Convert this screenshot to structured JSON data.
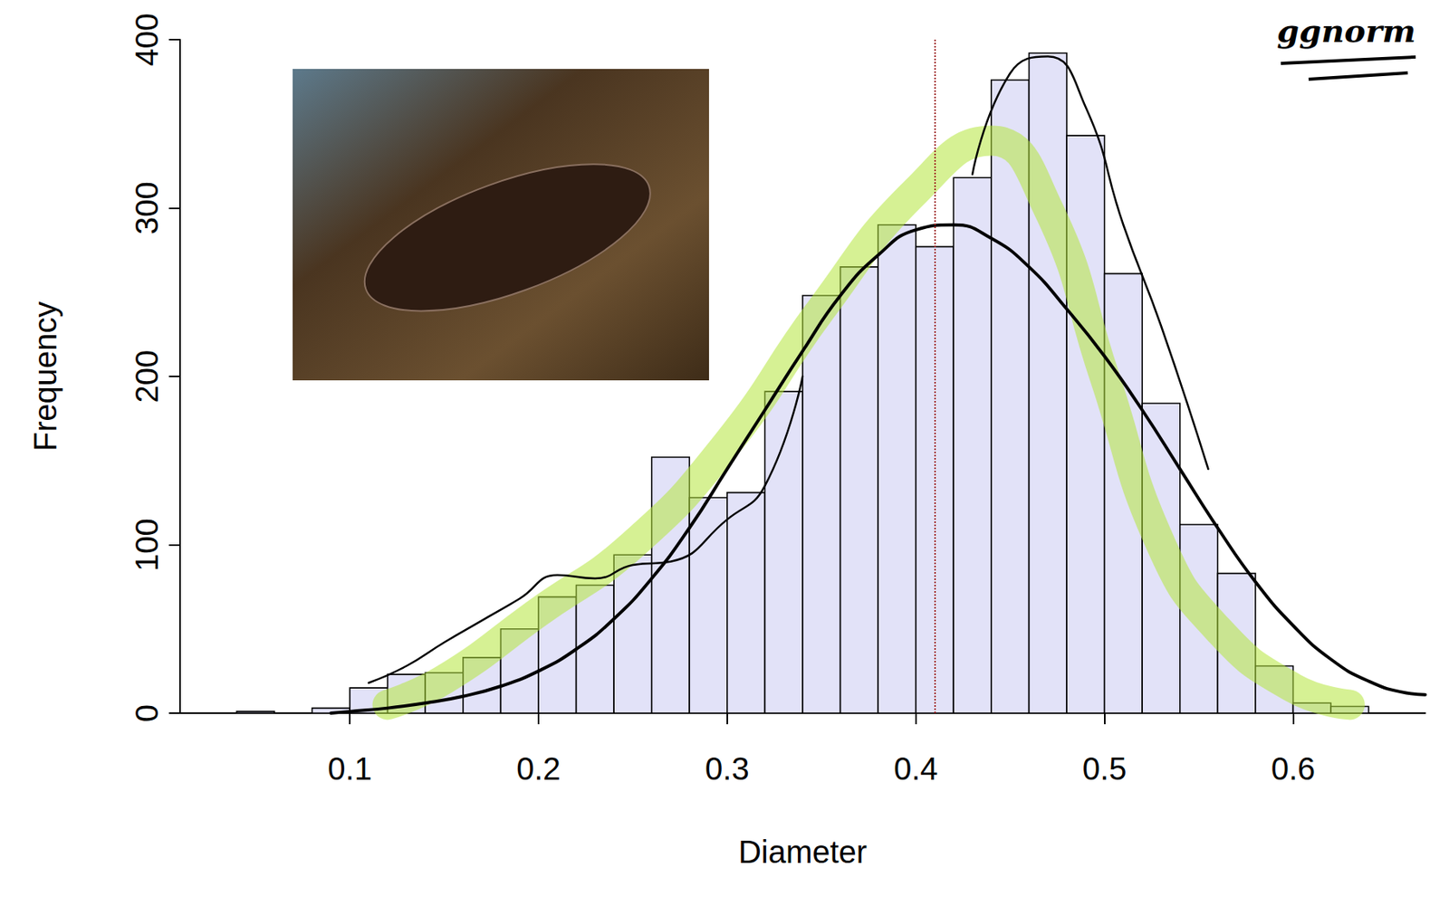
{
  "chart_data": {
    "type": "histogram",
    "x_label": "Diameter",
    "y_label": "Frequency",
    "annotation": "ggnorm",
    "bins": [
      0.04,
      0.06,
      0.08,
      0.1,
      0.12,
      0.14,
      0.16,
      0.18,
      0.2,
      0.22,
      0.24,
      0.26,
      0.28,
      0.3,
      0.32,
      0.34,
      0.36,
      0.38,
      0.4,
      0.42,
      0.44,
      0.46,
      0.48,
      0.5,
      0.52,
      0.54,
      0.56,
      0.58,
      0.6,
      0.62,
      0.64
    ],
    "values": [
      1,
      0,
      3,
      15,
      23,
      24,
      33,
      50,
      69,
      76,
      94,
      152,
      128,
      131,
      191,
      248,
      265,
      290,
      277,
      318,
      376,
      392,
      343,
      261,
      184,
      112,
      83,
      28,
      6,
      4
    ],
    "color": "#e2e2f8",
    "xlim": [
      0.01,
      0.67
    ],
    "xticks": [
      0.1,
      0.2,
      0.3,
      0.4,
      0.5,
      0.6
    ],
    "ylim": [
      0,
      400
    ],
    "yticks": [
      0,
      100,
      200,
      300,
      400
    ],
    "grid": false,
    "mean_line": {
      "x": 0.408,
      "color": "#a52a2a",
      "line_style": "dotted"
    },
    "series": [
      {
        "type": "line",
        "color": "#b4e63c",
        "marker": "none",
        "line_style": "solid",
        "x": [
          0.12,
          0.15,
          0.2,
          0.25,
          0.3,
          0.35,
          0.4,
          0.44,
          0.47,
          0.5,
          0.53,
          0.56,
          0.6,
          0.63
        ],
        "values": [
          5,
          20,
          60,
          100,
          160,
          240,
          310,
          340,
          300,
          200,
          100,
          50,
          15,
          5
        ]
      },
      {
        "type": "line",
        "color": "#000000",
        "marker": "none",
        "line_style": "solid",
        "x": [
          0.09,
          0.1,
          0.12,
          0.14,
          0.16,
          0.18,
          0.2,
          0.22,
          0.24,
          0.26,
          0.28,
          0.3,
          0.32,
          0.34,
          0.36,
          0.38,
          0.4,
          0.42,
          0.44,
          0.46,
          0.48,
          0.5,
          0.52,
          0.54,
          0.56,
          0.58,
          0.6,
          0.62,
          0.64,
          0.66,
          0.67
        ],
        "values": [
          0,
          1,
          3,
          6,
          10,
          16,
          25,
          38,
          56,
          80,
          110,
          145,
          180,
          215,
          248,
          272,
          287,
          290,
          282,
          265,
          240,
          212,
          180,
          145,
          110,
          78,
          52,
          32,
          19,
          12,
          11
        ]
      },
      {
        "type": "line",
        "color": "#000000",
        "marker": "none",
        "line_style": "solid",
        "x": [
          0.11,
          0.13,
          0.15,
          0.17,
          0.19,
          0.21,
          0.23,
          0.25,
          0.27,
          0.3,
          0.32,
          0.34,
          0.38,
          0.43,
          0.45,
          0.47,
          0.49,
          0.51,
          0.53,
          0.555
        ],
        "values": [
          18,
          28,
          42,
          55,
          68,
          82,
          80,
          88,
          90,
          115,
          135,
          200,
          null,
          320,
          380,
          390,
          360,
          290,
          230,
          145
        ]
      }
    ]
  }
}
